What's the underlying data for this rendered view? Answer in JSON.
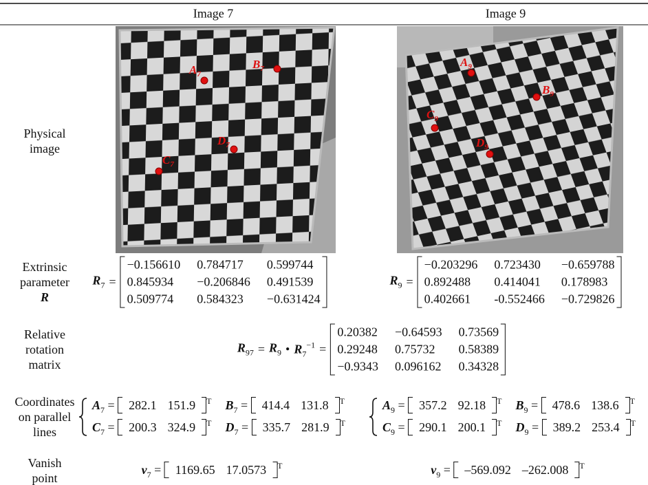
{
  "header": {
    "columns": [
      "Image 7",
      "Image 9"
    ]
  },
  "physical_image": {
    "label": [
      "Physical",
      "image"
    ],
    "image_7": {
      "points": [
        {
          "letter": "A",
          "sub": "7"
        },
        {
          "letter": "B",
          "sub": "7"
        },
        {
          "letter": "C",
          "sub": "7"
        },
        {
          "letter": "D",
          "sub": "7"
        }
      ]
    },
    "image_9": {
      "points": [
        {
          "letter": "A",
          "sub": "9"
        },
        {
          "letter": "B",
          "sub": "9"
        },
        {
          "letter": "C",
          "sub": "9"
        },
        {
          "letter": "D",
          "sub": "9"
        }
      ]
    }
  },
  "extrinsic": {
    "label": [
      "Extrinsic",
      "parameter"
    ],
    "label_symbol": "R",
    "image_7": {
      "symbol": {
        "letter": "R",
        "sub": "7"
      },
      "eq": "=",
      "rows": [
        [
          "−0.156610",
          "0.784717",
          "0.599744"
        ],
        [
          "0.845934",
          "−0.206846",
          "0.491539"
        ],
        [
          "0.509774",
          "0.584323",
          "−0.631424"
        ]
      ]
    },
    "image_9": {
      "symbol": {
        "letter": "R",
        "sub": "9"
      },
      "eq": "=",
      "rows": [
        [
          "−0.203296",
          "0.723430",
          "−0.659788"
        ],
        [
          "0.892488",
          "0.414041",
          "0.178983"
        ],
        [
          "0.402661",
          "-0.552466",
          "−0.729826"
        ]
      ]
    }
  },
  "relative_rotation": {
    "label": [
      "Relative",
      "rotation",
      "matrix"
    ],
    "lhs": {
      "letter": "R",
      "sub": "97"
    },
    "eq1": "=",
    "term1": {
      "letter": "R",
      "sub": "9"
    },
    "op": "•",
    "term2": {
      "letter": "R",
      "sub": "7",
      "sup": "−1"
    },
    "eq2": "=",
    "rows": [
      [
        "0.20382",
        "−0.64593",
        "0.73569"
      ],
      [
        "0.29248",
        "0.75732",
        "0.58389"
      ],
      [
        "−0.9343",
        "0.096162",
        "0.34328"
      ]
    ]
  },
  "coordinates": {
    "label": [
      "Coordinates",
      "on parallel",
      "lines"
    ],
    "image_7": [
      {
        "letter": "A",
        "sub": "7",
        "eq": "=",
        "values": [
          "282.1",
          "151.9"
        ],
        "vec_sup": "T"
      },
      {
        "letter": "B",
        "sub": "7",
        "eq": "=",
        "values": [
          "414.4",
          "131.8"
        ],
        "vec_sup": "T"
      },
      {
        "letter": "C",
        "sub": "7",
        "eq": "=",
        "values": [
          "200.3",
          "324.9"
        ],
        "vec_sup": "T"
      },
      {
        "letter": "D",
        "sub": "7",
        "eq": "=",
        "values": [
          "335.7",
          "281.9"
        ],
        "vec_sup": "T"
      }
    ],
    "image_9": [
      {
        "letter": "A",
        "sub": "9",
        "eq": "=",
        "values": [
          "357.2",
          "92.18"
        ],
        "vec_sup": "T"
      },
      {
        "letter": "B",
        "sub": "9",
        "eq": "=",
        "values": [
          "478.6",
          "138.6"
        ],
        "vec_sup": "T"
      },
      {
        "letter": "C",
        "sub": "9",
        "eq": "=",
        "values": [
          "290.1",
          "200.1"
        ],
        "vec_sup": "T"
      },
      {
        "letter": "D",
        "sub": "9",
        "eq": "=",
        "values": [
          "389.2",
          "253.4"
        ],
        "vec_sup": "T"
      }
    ]
  },
  "vanish_point": {
    "label": [
      "Vanish",
      "point"
    ],
    "image_7": {
      "letter": "v",
      "sub": "7",
      "eq": "=",
      "values": [
        "1169.65",
        "17.0573"
      ],
      "vec_sup": "T"
    },
    "image_9": {
      "letter": "v",
      "sub": "9",
      "eq": "=",
      "values": [
        "–569.092",
        "–262.008"
      ],
      "vec_sup": "T"
    }
  }
}
